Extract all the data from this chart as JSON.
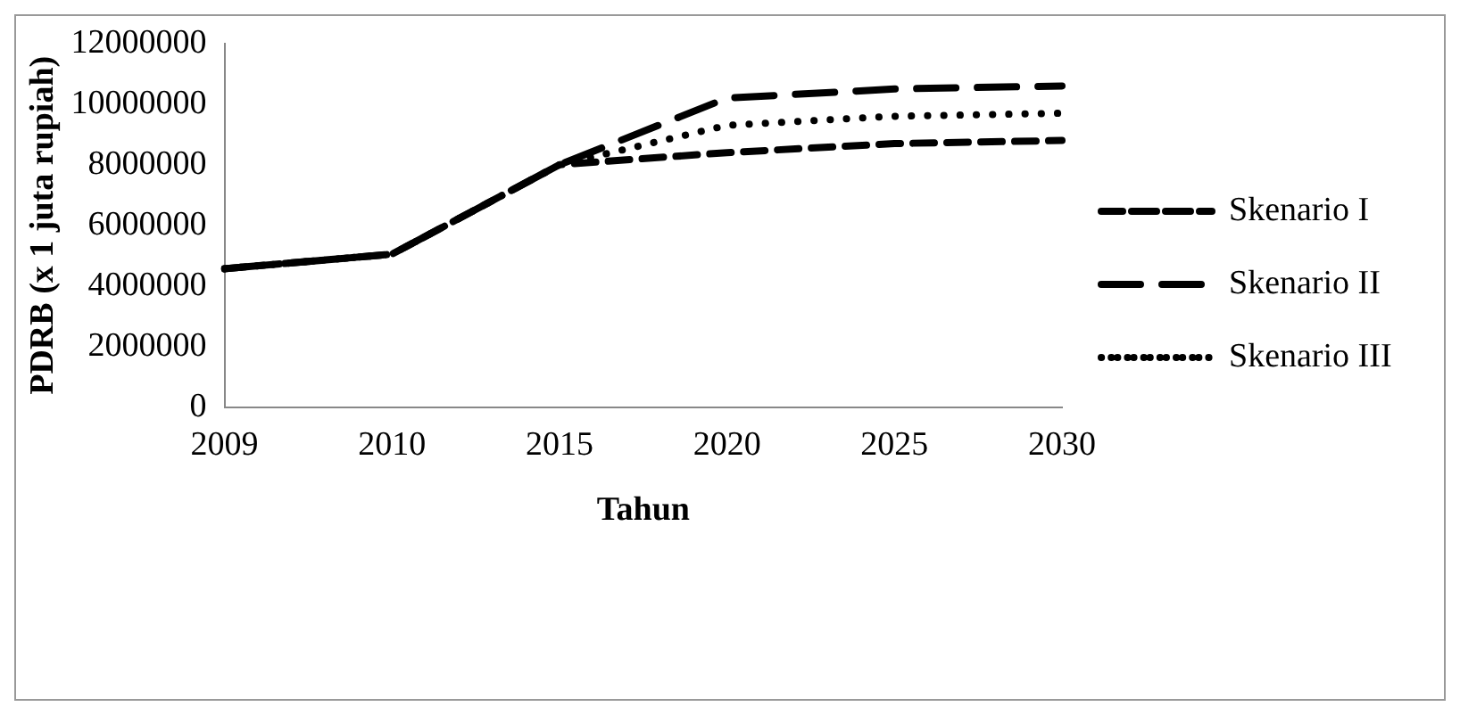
{
  "chart_data": {
    "type": "line",
    "xlabel": "Tahun",
    "ylabel": "PDRB (x 1 juta rupiah)",
    "categories": [
      "2009",
      "2010",
      "2015",
      "2020",
      "2025",
      "2030"
    ],
    "ylim": [
      0,
      12000000
    ],
    "yticks": [
      0,
      2000000,
      4000000,
      6000000,
      8000000,
      10000000,
      12000000
    ],
    "grid": false,
    "legend": "right",
    "marker": "none",
    "series": [
      {
        "name": "Skenario I",
        "color": "#000000",
        "line_style": "dashed",
        "values": [
          4570000,
          5050000,
          8000000,
          8400000,
          8700000,
          8800000
        ]
      },
      {
        "name": "Skenario II",
        "color": "#000000",
        "line_style": "dashed",
        "values": [
          4570000,
          5050000,
          8000000,
          10200000,
          10500000,
          10600000
        ]
      },
      {
        "name": "Skenario III",
        "color": "#000000",
        "line_style": "dotted",
        "values": [
          4570000,
          5050000,
          8000000,
          9300000,
          9600000,
          9700000
        ]
      }
    ]
  }
}
